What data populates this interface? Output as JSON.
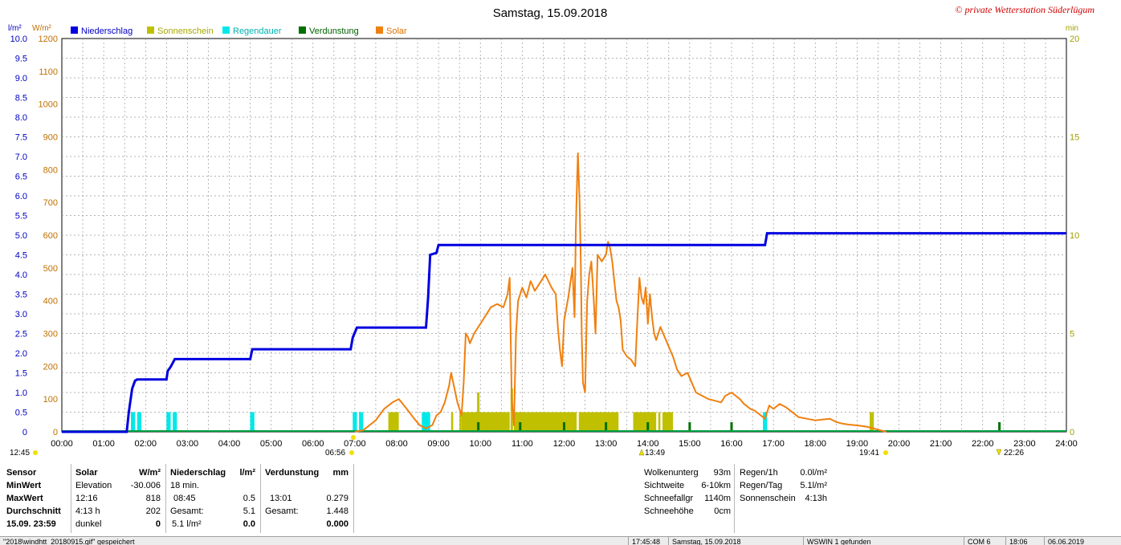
{
  "title": "Samstag, 15.09.2018",
  "copyright": "© private Wetterstation Süderlügum",
  "axes": {
    "left_unit_1": "l/m²",
    "left_unit_2": "W/m²",
    "right_unit": "min",
    "x_ticks": [
      "00:00",
      "01:00",
      "02:00",
      "03:00",
      "04:00",
      "05:00",
      "06:00",
      "07:00",
      "08:00",
      "09:00",
      "10:00",
      "11:00",
      "12:00",
      "13:00",
      "14:00",
      "15:00",
      "16:00",
      "17:00",
      "18:00",
      "19:00",
      "20:00",
      "21:00",
      "22:00",
      "23:00",
      "24:00"
    ],
    "rain_ticks": [
      "0",
      "0.5",
      "1.0",
      "1.5",
      "2.0",
      "2.5",
      "3.0",
      "3.5",
      "4.0",
      "4.5",
      "5.0",
      "5.5",
      "6.0",
      "6.5",
      "7.0",
      "7.5",
      "8.0",
      "8.5",
      "9.0",
      "9.5",
      "10.0"
    ],
    "solar_ticks": [
      "0",
      "100",
      "200",
      "300",
      "400",
      "500",
      "600",
      "700",
      "800",
      "900",
      "1000",
      "1100",
      "1200"
    ],
    "min_ticks": [
      "0",
      "5",
      "10",
      "15",
      "20"
    ]
  },
  "events": {
    "moonset": "12:45",
    "sunrise": "06:56",
    "culmination": "13:49",
    "sunset": "19:41",
    "moonrise": "22:26"
  },
  "chart_data": {
    "type": "line",
    "x_unit": "hours",
    "xlim": [
      0,
      24
    ],
    "ylim_rain": [
      0,
      10
    ],
    "ylim_solar": [
      0,
      1200
    ],
    "ylim_minutes": [
      0,
      20
    ],
    "grid": true,
    "legend_position": "top-left",
    "series": [
      {
        "name": "Niederschlag",
        "color": "#0000e0",
        "kind": "step",
        "points": [
          [
            0,
            0
          ],
          [
            1.55,
            0
          ],
          [
            1.6,
            0.5
          ],
          [
            1.68,
            1.1
          ],
          [
            1.75,
            1.3
          ],
          [
            1.8,
            1.33
          ],
          [
            2.5,
            1.33
          ],
          [
            2.53,
            1.55
          ],
          [
            2.6,
            1.65
          ],
          [
            2.7,
            1.85
          ],
          [
            4.5,
            1.85
          ],
          [
            4.55,
            2.1
          ],
          [
            6.9,
            2.1
          ],
          [
            6.95,
            2.4
          ],
          [
            7.05,
            2.65
          ],
          [
            8.7,
            2.65
          ],
          [
            8.75,
            3.4
          ],
          [
            8.8,
            4.5
          ],
          [
            8.95,
            4.55
          ],
          [
            9.0,
            4.75
          ],
          [
            16.8,
            4.75
          ],
          [
            16.85,
            5.05
          ],
          [
            24,
            5.05
          ]
        ]
      },
      {
        "name": "Sonnenschein",
        "color": "#c0c000",
        "kind": "bars",
        "intervals": [
          [
            7.8,
            8.05
          ],
          [
            9.3,
            9.35
          ],
          [
            9.5,
            9.55
          ],
          [
            9.55,
            10.7
          ],
          [
            10.8,
            12.3
          ],
          [
            12.35,
            13.3
          ],
          [
            13.65,
            14.2
          ],
          [
            14.25,
            14.3
          ],
          [
            14.35,
            14.6
          ],
          [
            19.3,
            19.4
          ]
        ],
        "tall_marks": [
          [
            9.95,
            1.0
          ],
          [
            10.75,
            1.2
          ]
        ]
      },
      {
        "name": "Regendauer",
        "color": "#00e8e8",
        "kind": "bars",
        "intervals": [
          [
            1.65,
            1.75
          ],
          [
            1.8,
            1.9
          ],
          [
            2.5,
            2.6
          ],
          [
            2.65,
            2.75
          ],
          [
            4.5,
            4.6
          ],
          [
            6.95,
            7.05
          ],
          [
            7.1,
            7.2
          ],
          [
            8.6,
            8.8
          ],
          [
            16.75,
            16.85
          ]
        ]
      },
      {
        "name": "Verdunstung",
        "color": "#007000",
        "kind": "ticks",
        "times": [
          9.95,
          10.95,
          12.0,
          13.0,
          14.0,
          15.0,
          16.0,
          22.4
        ]
      },
      {
        "name": "Solar",
        "color": "#f08010",
        "kind": "line",
        "points": [
          [
            7.0,
            0
          ],
          [
            7.2,
            5
          ],
          [
            7.5,
            35
          ],
          [
            7.7,
            70
          ],
          [
            7.9,
            90
          ],
          [
            8.05,
            100
          ],
          [
            8.15,
            85
          ],
          [
            8.3,
            60
          ],
          [
            8.45,
            35
          ],
          [
            8.55,
            20
          ],
          [
            8.7,
            10
          ],
          [
            8.85,
            20
          ],
          [
            8.95,
            50
          ],
          [
            9.05,
            60
          ],
          [
            9.15,
            90
          ],
          [
            9.25,
            140
          ],
          [
            9.3,
            180
          ],
          [
            9.35,
            150
          ],
          [
            9.45,
            90
          ],
          [
            9.55,
            50
          ],
          [
            9.6,
            150
          ],
          [
            9.65,
            300
          ],
          [
            9.7,
            290
          ],
          [
            9.75,
            270
          ],
          [
            9.85,
            300
          ],
          [
            10.0,
            330
          ],
          [
            10.1,
            350
          ],
          [
            10.25,
            380
          ],
          [
            10.4,
            390
          ],
          [
            10.55,
            380
          ],
          [
            10.65,
            420
          ],
          [
            10.7,
            470
          ],
          [
            10.75,
            100
          ],
          [
            10.8,
            20
          ],
          [
            10.85,
            300
          ],
          [
            10.9,
            400
          ],
          [
            11.0,
            440
          ],
          [
            11.1,
            410
          ],
          [
            11.2,
            460
          ],
          [
            11.3,
            430
          ],
          [
            11.45,
            460
          ],
          [
            11.55,
            480
          ],
          [
            11.7,
            440
          ],
          [
            11.8,
            420
          ],
          [
            11.85,
            320
          ],
          [
            11.9,
            250
          ],
          [
            11.95,
            200
          ],
          [
            12.0,
            340
          ],
          [
            12.1,
            410
          ],
          [
            12.2,
            500
          ],
          [
            12.25,
            350
          ],
          [
            12.28,
            620
          ],
          [
            12.3,
            720
          ],
          [
            12.33,
            850
          ],
          [
            12.37,
            700
          ],
          [
            12.4,
            500
          ],
          [
            12.42,
            300
          ],
          [
            12.45,
            150
          ],
          [
            12.5,
            120
          ],
          [
            12.55,
            400
          ],
          [
            12.6,
            480
          ],
          [
            12.65,
            520
          ],
          [
            12.7,
            420
          ],
          [
            12.75,
            300
          ],
          [
            12.8,
            540
          ],
          [
            12.9,
            520
          ],
          [
            13.0,
            540
          ],
          [
            13.05,
            580
          ],
          [
            13.1,
            560
          ],
          [
            13.15,
            520
          ],
          [
            13.2,
            460
          ],
          [
            13.25,
            400
          ],
          [
            13.3,
            380
          ],
          [
            13.35,
            340
          ],
          [
            13.4,
            250
          ],
          [
            13.45,
            240
          ],
          [
            13.5,
            230
          ],
          [
            13.6,
            220
          ],
          [
            13.7,
            200
          ],
          [
            13.75,
            340
          ],
          [
            13.8,
            470
          ],
          [
            13.85,
            410
          ],
          [
            13.9,
            390
          ],
          [
            13.95,
            440
          ],
          [
            14.0,
            330
          ],
          [
            14.05,
            420
          ],
          [
            14.1,
            350
          ],
          [
            14.15,
            300
          ],
          [
            14.2,
            280
          ],
          [
            14.25,
            300
          ],
          [
            14.3,
            320
          ],
          [
            14.4,
            290
          ],
          [
            14.5,
            260
          ],
          [
            14.6,
            230
          ],
          [
            14.7,
            190
          ],
          [
            14.8,
            170
          ],
          [
            14.95,
            180
          ],
          [
            15.05,
            150
          ],
          [
            15.15,
            120
          ],
          [
            15.3,
            110
          ],
          [
            15.45,
            100
          ],
          [
            15.6,
            95
          ],
          [
            15.75,
            90
          ],
          [
            15.85,
            110
          ],
          [
            16.0,
            120
          ],
          [
            16.1,
            110
          ],
          [
            16.2,
            100
          ],
          [
            16.3,
            85
          ],
          [
            16.45,
            70
          ],
          [
            16.55,
            65
          ],
          [
            16.7,
            50
          ],
          [
            16.8,
            40
          ],
          [
            16.9,
            80
          ],
          [
            17.0,
            70
          ],
          [
            17.15,
            85
          ],
          [
            17.3,
            75
          ],
          [
            17.45,
            60
          ],
          [
            17.6,
            45
          ],
          [
            17.8,
            40
          ],
          [
            18.0,
            35
          ],
          [
            18.2,
            38
          ],
          [
            18.35,
            40
          ],
          [
            18.5,
            30
          ],
          [
            18.65,
            25
          ],
          [
            18.8,
            22
          ],
          [
            18.95,
            20
          ],
          [
            19.1,
            18
          ],
          [
            19.25,
            15
          ],
          [
            19.4,
            10
          ],
          [
            19.55,
            5
          ],
          [
            19.7,
            0
          ]
        ]
      }
    ]
  },
  "stats": {
    "solar": {
      "h_sensor": "Sensor",
      "h_solar": "Solar",
      "h_unit": "W/m²",
      "r1_label": "MinWert",
      "r1_a": "Elevation",
      "r1_b": "-30.006",
      "r2_label": "MaxWert",
      "r2_a": "12:16",
      "r2_b": "818",
      "r3_label": "Durchschnitt",
      "r3_a": "4:13 h",
      "r3_b": "202",
      "r4_label": "15.09.  23:59",
      "r4_a": "dunkel",
      "r4_b": "0"
    },
    "rain": {
      "h_title": "Niederschlag",
      "h_unit": "l/m²",
      "r1_a": "18 min.",
      "r1_b": "",
      "r2_a": "08:45",
      "r2_b": "0.5",
      "r3_a": "Gesamt:",
      "r3_b": "5.1",
      "r4_a": "5.1 l/m²",
      "r4_b": "0.0"
    },
    "evap": {
      "h_title": "Verdunstung",
      "h_unit": "mm",
      "r2_a": "13:01",
      "r2_b": "0.279",
      "r3_a": "Gesamt:",
      "r3_b": "1.448",
      "r4_b": "0.000"
    },
    "weather": {
      "c1": [
        [
          "Wolkenunterg",
          "93m"
        ],
        [
          "Sichtweite",
          "6-10km"
        ],
        [
          "Schneefallgr",
          "1140m"
        ],
        [
          "Schneehöhe",
          "0cm"
        ]
      ],
      "c2": [
        [
          "Regen/1h",
          "0.0l/m²"
        ],
        [
          "Regen/Tag",
          "5.1l/m²"
        ],
        [
          "Sonnenschein",
          "4:13h"
        ]
      ]
    }
  },
  "statusbar": {
    "file": "\"2018\\windhtt_20180915.gif\" gespeichert",
    "time": "17:45:48",
    "date": "Samstag, 15.09.2018",
    "msg": "WSWIN 1 gefunden",
    "com": "COM 6",
    "clock": "18:06",
    "today": "06.06.2019"
  }
}
